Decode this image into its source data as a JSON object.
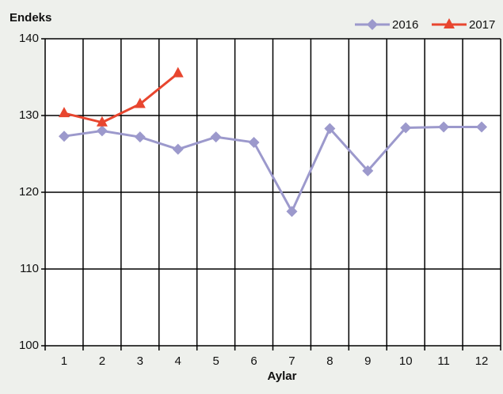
{
  "chart_data": {
    "type": "line",
    "y_label": "Endeks",
    "x_label": "Aylar",
    "categories": [
      "1",
      "2",
      "3",
      "4",
      "5",
      "6",
      "7",
      "8",
      "9",
      "10",
      "11",
      "12"
    ],
    "series": [
      {
        "name": "2016",
        "color": "#9c99cc",
        "marker": "diamond",
        "values": [
          127.3,
          128.0,
          127.2,
          125.6,
          127.2,
          126.5,
          117.5,
          128.3,
          122.8,
          128.4,
          128.5,
          128.5
        ]
      },
      {
        "name": "2017",
        "color": "#e8462f",
        "marker": "triangle",
        "values": [
          130.3,
          129.1,
          131.5,
          135.5,
          null,
          null,
          null,
          null,
          null,
          null,
          null,
          null
        ]
      }
    ],
    "ylim": [
      100,
      140
    ],
    "yticks": [
      100,
      110,
      120,
      130,
      140
    ],
    "grid": true,
    "legend": "top-right"
  }
}
